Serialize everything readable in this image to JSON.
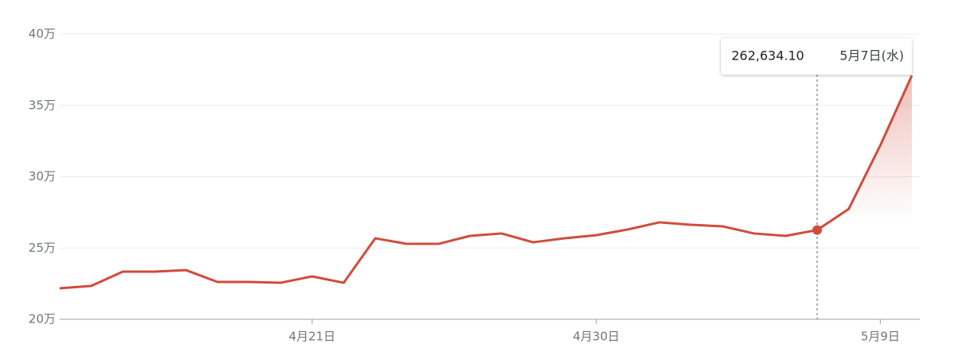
{
  "chart_data": {
    "type": "line",
    "categories": [
      null,
      null,
      null,
      null,
      null,
      null,
      null,
      null,
      "4月21日",
      null,
      null,
      null,
      null,
      null,
      null,
      null,
      null,
      "4月30日",
      null,
      null,
      null,
      null,
      null,
      null,
      null,
      null,
      "5月9日",
      null
    ],
    "values": [
      221700,
      223400,
      233400,
      233400,
      234500,
      226200,
      226200,
      225600,
      230100,
      225600,
      256800,
      252900,
      252900,
      258500,
      260200,
      254000,
      256800,
      259000,
      263000,
      268000,
      266300,
      265200,
      260200,
      258500,
      262634.1,
      277400,
      322000,
      371000
    ],
    "value_labels": [
      null,
      null,
      null,
      null,
      null,
      null,
      null,
      null,
      null,
      null,
      null,
      null,
      null,
      null,
      null,
      null,
      null,
      null,
      null,
      null,
      null,
      null,
      null,
      null,
      "262,634.10",
      null,
      null,
      null
    ],
    "tooltip_date": "5月7日(水)",
    "color": "#cf4c3c",
    "ylim": [
      200000,
      400000
    ],
    "yticks": [
      {
        "value": 200000,
        "label": "20万"
      },
      {
        "value": 250000,
        "label": "25万"
      },
      {
        "value": 300000,
        "label": "30万"
      },
      {
        "value": 350000,
        "label": "35万"
      },
      {
        "value": 400000,
        "label": "40万"
      }
    ],
    "grid": true
  }
}
